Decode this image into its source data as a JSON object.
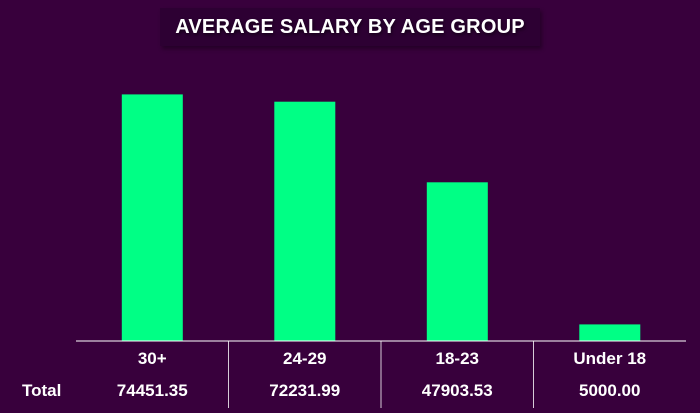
{
  "chart_data": {
    "type": "bar",
    "title": "AVERAGE SALARY BY AGE GROUP",
    "categories": [
      "30+",
      "24-29",
      "18-23",
      "Under 18"
    ],
    "series": [
      {
        "name": "Total",
        "values": [
          74451.35,
          72231.99,
          47903.53,
          5000.0
        ],
        "value_labels": [
          "74451.35",
          "72231.99",
          "47903.53",
          "5000.00"
        ]
      }
    ],
    "xlabel": "",
    "ylabel": "",
    "ylim": [
      0,
      80000
    ],
    "grid": false,
    "legend": "none",
    "data_table": true,
    "colors": {
      "background": "#38003c",
      "bar": "#00ff85",
      "text": "#ffffff",
      "axis": "#ffffff"
    }
  }
}
